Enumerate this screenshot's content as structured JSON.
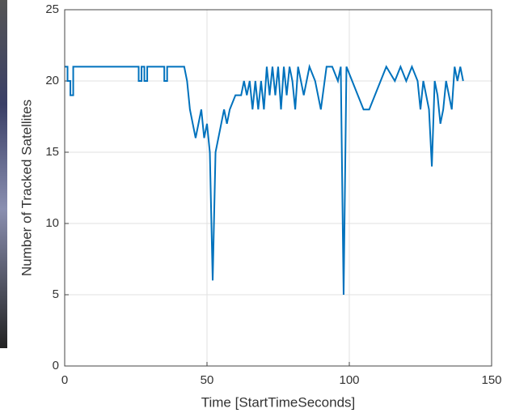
{
  "chart_data": {
    "type": "line",
    "x_label": "Time [StartTimeSeconds]",
    "y_label": "Number of Tracked Satellites",
    "x": [
      0,
      1,
      1,
      2,
      2,
      3,
      3,
      26,
      26,
      27,
      27,
      28,
      28,
      29,
      29,
      35,
      35,
      36,
      36,
      42,
      43,
      44,
      45,
      46,
      47,
      48,
      49,
      50,
      51,
      52,
      53,
      54,
      55,
      56,
      57,
      58,
      60,
      62,
      63,
      64,
      65,
      66,
      67,
      68,
      69,
      70,
      71,
      72,
      73,
      74,
      75,
      76,
      77,
      78,
      79,
      80,
      81,
      82,
      84,
      86,
      88,
      90,
      92,
      94,
      96,
      97,
      98,
      99,
      101,
      103,
      105,
      107,
      109,
      111,
      113,
      116,
      118,
      120,
      122,
      124,
      125,
      126,
      127,
      128,
      129,
      130,
      131,
      132,
      133,
      134,
      135,
      136,
      137,
      138,
      139,
      140
    ],
    "values": [
      21,
      21,
      20,
      20,
      19,
      19,
      21,
      21,
      20,
      20,
      21,
      21,
      20,
      20,
      21,
      21,
      20,
      20,
      21,
      21,
      20,
      18,
      17,
      16,
      17,
      18,
      16,
      17,
      15,
      6,
      15,
      16,
      17,
      18,
      17,
      18,
      19,
      19,
      20,
      19,
      20,
      18,
      20,
      18,
      20,
      18,
      21,
      19,
      21,
      19,
      21,
      18,
      21,
      19,
      21,
      20,
      18,
      21,
      19,
      21,
      20,
      18,
      21,
      21,
      20,
      21,
      5,
      21,
      20,
      19,
      18,
      18,
      19,
      20,
      21,
      20,
      21,
      20,
      21,
      20,
      18,
      20,
      19,
      18,
      14,
      20,
      19,
      17,
      18,
      20,
      19,
      18,
      21,
      20,
      21,
      20
    ],
    "color": "#0072bd",
    "xlim": [
      0,
      150
    ],
    "xticks": [
      0,
      50,
      100,
      150
    ],
    "ylim": [
      0,
      25
    ],
    "yticks": [
      0,
      5,
      10,
      15,
      20,
      25
    ],
    "grid": true
  }
}
